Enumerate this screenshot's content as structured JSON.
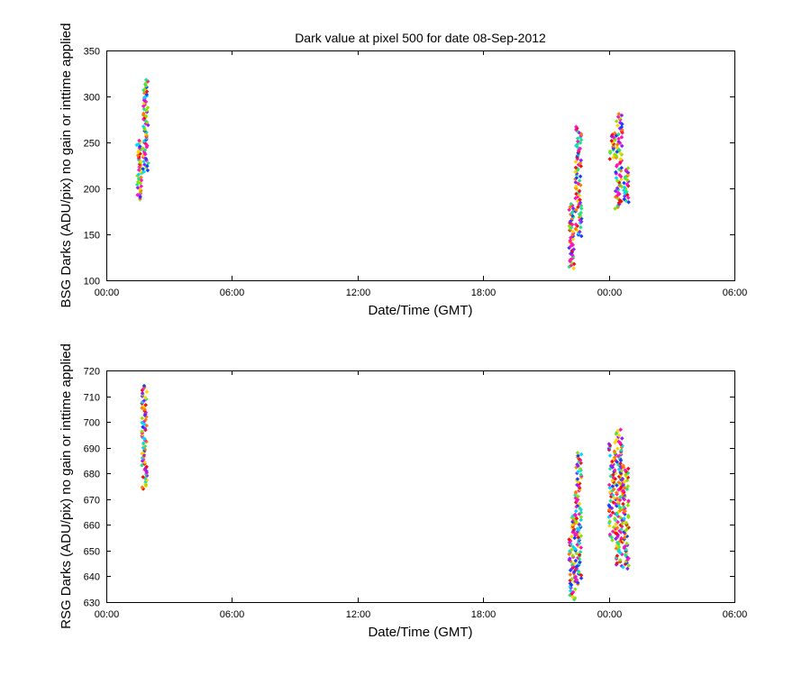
{
  "chart_data": [
    {
      "type": "scatter",
      "title": "Dark value at pixel 500 for date 08-Sep-2012",
      "xlabel": "Date/Time (GMT)",
      "ylabel": "BSG Darks (ADU/pix) no gain or inttime applied",
      "xlim_hours": [
        0,
        30
      ],
      "xticks": [
        "00:00",
        "06:00",
        "12:00",
        "18:00",
        "00:00",
        "06:00"
      ],
      "ylim": [
        100,
        350
      ],
      "yticks": [
        100,
        150,
        200,
        250,
        300,
        350
      ],
      "grid": false,
      "marker": "diamond",
      "color_scale": "rainbow (red-orange-yellow-green-cyan-blue-magenta)",
      "clusters": [
        {
          "x_hours": [
            1.45,
            1.7
          ],
          "y_range": [
            188,
            252
          ]
        },
        {
          "x_hours": [
            1.75,
            2.0
          ],
          "y_range": [
            218,
            318
          ]
        },
        {
          "x_hours": [
            22.1,
            22.35
          ],
          "y_range": [
            113,
            183
          ]
        },
        {
          "x_hours": [
            22.4,
            22.7
          ],
          "y_range": [
            148,
            267
          ]
        },
        {
          "x_hours": [
            24.0,
            24.3
          ],
          "y_range": [
            232,
            260
          ]
        },
        {
          "x_hours": [
            24.3,
            24.65
          ],
          "y_range": [
            178,
            281
          ]
        },
        {
          "x_hours": [
            24.7,
            24.95
          ],
          "y_range": [
            185,
            222
          ]
        }
      ]
    },
    {
      "type": "scatter",
      "title": "",
      "xlabel": "Date/Time (GMT)",
      "ylabel": "RSG Darks (ADU/pix) no gain or inttime applied",
      "xlim_hours": [
        0,
        30
      ],
      "xticks": [
        "00:00",
        "06:00",
        "12:00",
        "18:00",
        "00:00",
        "06:00"
      ],
      "ylim": [
        630,
        720
      ],
      "yticks": [
        630,
        640,
        650,
        660,
        670,
        680,
        690,
        700,
        710,
        720
      ],
      "grid": false,
      "marker": "diamond",
      "color_scale": "rainbow (red-orange-yellow-green-cyan-blue-magenta)",
      "clusters": [
        {
          "x_hours": [
            1.7,
            1.95
          ],
          "y_range": [
            674,
            714
          ]
        },
        {
          "x_hours": [
            22.1,
            22.4
          ],
          "y_range": [
            631,
            664
          ]
        },
        {
          "x_hours": [
            22.4,
            22.7
          ],
          "y_range": [
            637,
            688
          ]
        },
        {
          "x_hours": [
            24.0,
            24.35
          ],
          "y_range": [
            654,
            692
          ]
        },
        {
          "x_hours": [
            24.35,
            24.65
          ],
          "y_range": [
            644,
            697
          ]
        },
        {
          "x_hours": [
            24.65,
            24.95
          ],
          "y_range": [
            643,
            683
          ]
        }
      ]
    }
  ]
}
